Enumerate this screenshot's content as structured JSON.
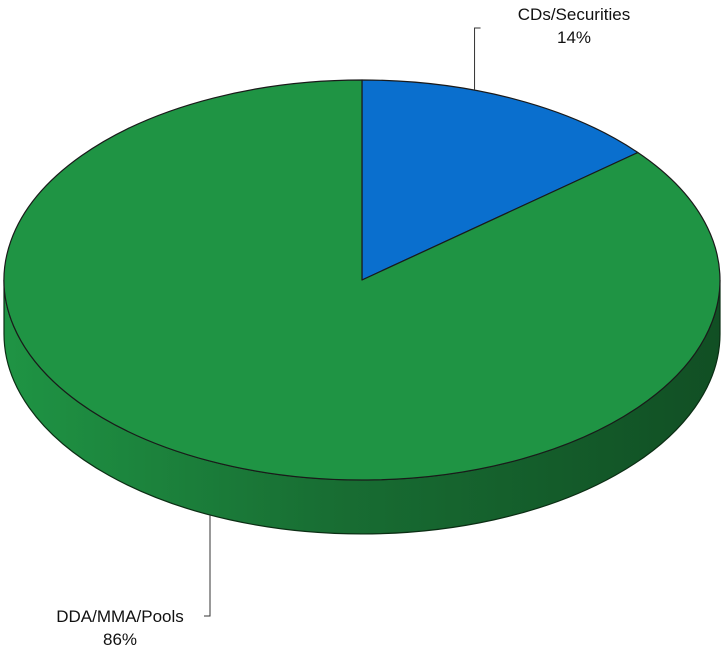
{
  "chart_data": {
    "type": "pie",
    "style": "3d",
    "title": "",
    "legend": "none",
    "slices": [
      {
        "name": "CDs/Securities",
        "value": 14,
        "label": "14%",
        "color": "#0a6fce"
      },
      {
        "name": "DDA/MMA/Pools",
        "value": 86,
        "label": "86%",
        "color": "#1f9444"
      }
    ],
    "side_colors": {
      "top": "#1f9444",
      "side_dark": "#114f24"
    }
  }
}
